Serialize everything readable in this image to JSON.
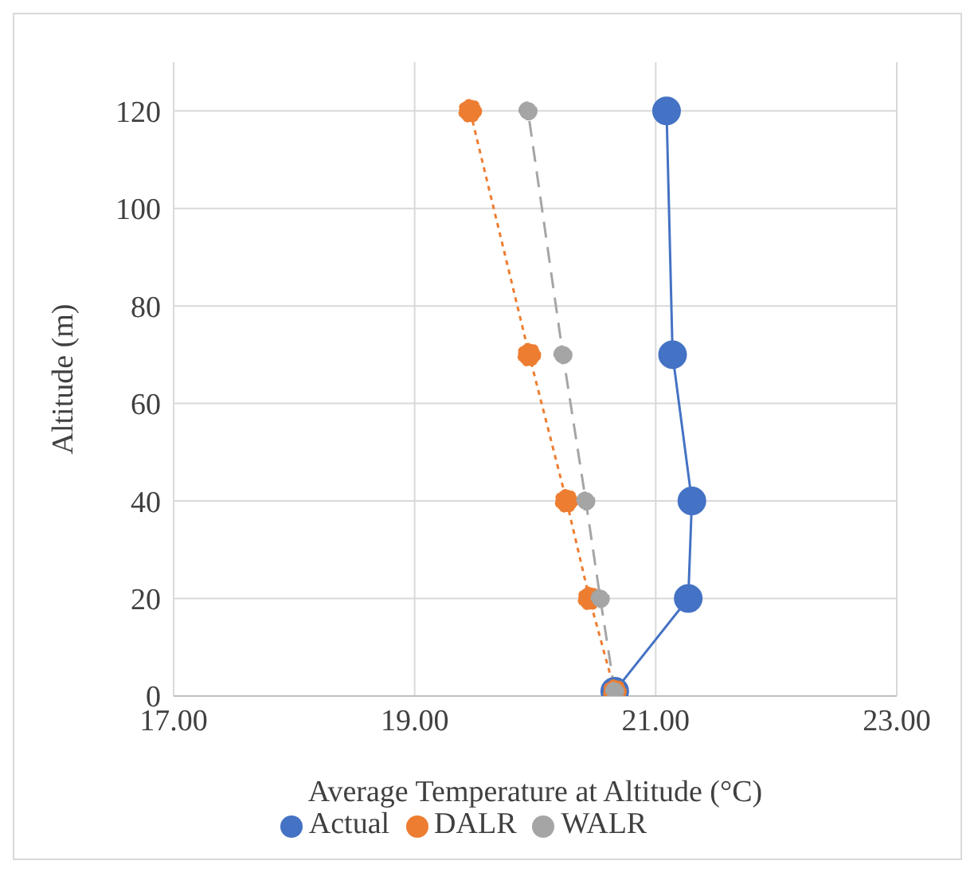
{
  "chart_data": {
    "type": "line",
    "xlabel": "Average Temperature at Altitude (°C)",
    "ylabel": "Altitude (m)",
    "xlim": [
      17,
      23
    ],
    "xticks": [
      {
        "value": 17,
        "label": "17.00"
      },
      {
        "value": 19,
        "label": "19.00"
      },
      {
        "value": 21,
        "label": "21.00"
      },
      {
        "value": 23,
        "label": "23.00"
      }
    ],
    "ylim": [
      0,
      130
    ],
    "yticks": [
      0,
      20,
      40,
      60,
      80,
      100,
      120
    ],
    "grid": true,
    "legend": "bottom",
    "marker": "circle",
    "series": [
      {
        "name": "Actual",
        "color": "#4472c4",
        "line_style": "solid",
        "x": [
          20.66,
          21.27,
          21.3,
          21.14,
          21.09
        ],
        "values": [
          1,
          20,
          40,
          70,
          120
        ]
      },
      {
        "name": "DALR",
        "color": "#ed7d31",
        "line_style": "dotted",
        "x": [
          20.66,
          20.45,
          20.26,
          19.95,
          19.46
        ],
        "values": [
          1,
          20,
          40,
          70,
          120
        ]
      },
      {
        "name": "WALR",
        "color": "#a5a5a5",
        "line_style": "dashed",
        "x": [
          20.66,
          20.54,
          20.42,
          20.23,
          19.94
        ],
        "values": [
          1,
          20,
          40,
          70,
          120
        ]
      }
    ]
  }
}
